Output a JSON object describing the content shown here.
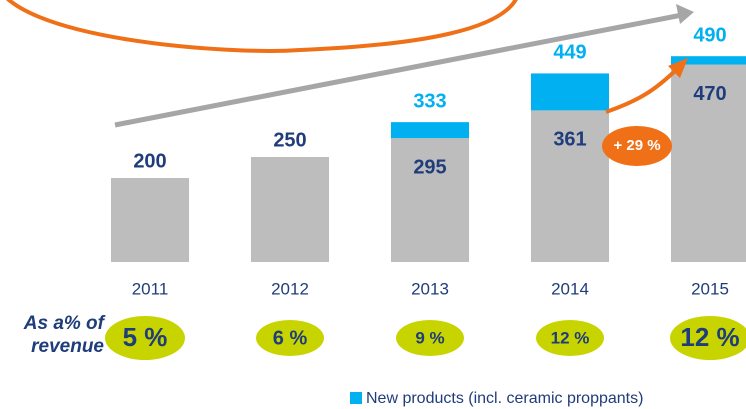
{
  "chart_data": {
    "type": "stacked_bar",
    "categories": [
      "2011",
      "2012",
      "2013",
      "2014",
      "2015"
    ],
    "series": [
      {
        "color": "#bdbdbd",
        "values": [
          200,
          250,
          295,
          361,
          470
        ]
      },
      {
        "name": "New products (incl. ceramic proppants)",
        "color": "#00b0f0",
        "values": [
          null,
          null,
          38,
          88,
          20
        ]
      }
    ],
    "totals": [
      null,
      null,
      333,
      449,
      490
    ],
    "ylim": [
      0,
      600
    ],
    "growth_annotation": "+ 29 %",
    "revenue_share": {
      "label": "As a% of revenue",
      "values": [
        5,
        6,
        9,
        12,
        12
      ],
      "value_labels": [
        "5 %",
        "6 %",
        "9 %",
        "12 %",
        "12 %"
      ]
    }
  }
}
